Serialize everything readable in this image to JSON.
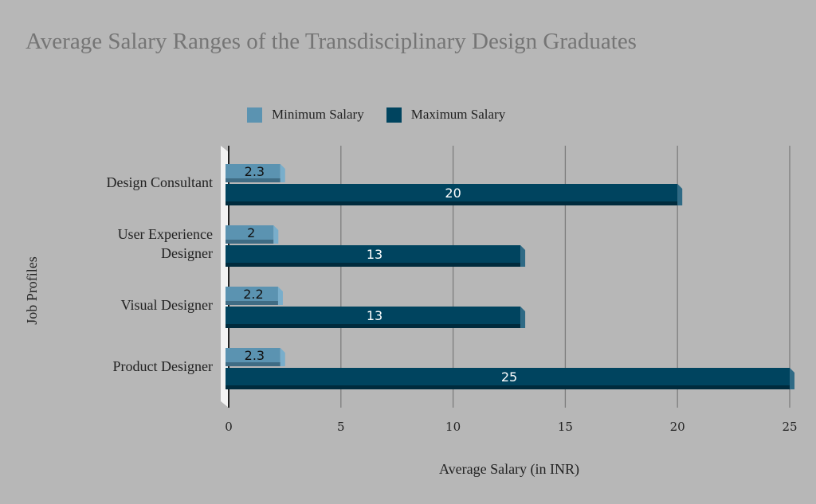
{
  "chart_data": {
    "type": "bar",
    "orientation": "horizontal",
    "title": "Average Salary Ranges of the Transdisciplinary Design Graduates",
    "xlabel": "Average Salary (in INR)",
    "ylabel": "Job Profiles",
    "categories": [
      [
        "Design Consultant"
      ],
      [
        "User Experience",
        "Designer"
      ],
      [
        "Visual Designer"
      ],
      [
        "Product Designer"
      ]
    ],
    "series": [
      {
        "name": "Minimum Salary",
        "color": "#5b93b1",
        "values": [
          2.3,
          2,
          2.2,
          2.3
        ]
      },
      {
        "name": "Maximum Salary",
        "color": "#00445f",
        "values": [
          20,
          13,
          13,
          25
        ]
      }
    ],
    "xlim": [
      0,
      25
    ],
    "xticks": [
      0,
      5,
      10,
      15,
      20,
      25
    ],
    "grid": true,
    "legend": "top",
    "data_labels": true
  }
}
